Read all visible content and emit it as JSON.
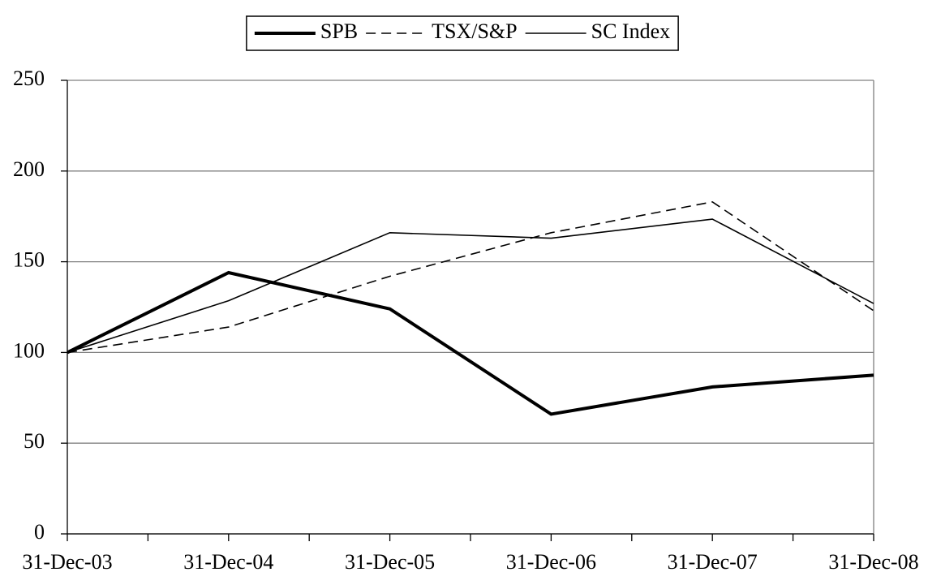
{
  "chart_data": {
    "type": "line",
    "categories": [
      "31-Dec-03",
      "31-Dec-04",
      "31-Dec-05",
      "31-Dec-06",
      "31-Dec-07",
      "31-Dec-08"
    ],
    "series": [
      {
        "name": "SPB",
        "color": "#000000",
        "width": 4,
        "dash": "none",
        "values": [
          100,
          144,
          124,
          66,
          81,
          87.5
        ]
      },
      {
        "name": "TSX/S&P",
        "color": "#000000",
        "width": 1.6,
        "dash": "12 7",
        "values": [
          100,
          114,
          142,
          166,
          183,
          123
        ]
      },
      {
        "name": "SC Index",
        "color": "#000000",
        "width": 1.6,
        "dash": "none",
        "values": [
          100,
          128.5,
          166,
          163,
          173.5,
          127
        ]
      }
    ],
    "ylim": [
      0,
      250
    ],
    "yticks": [
      0,
      50,
      100,
      150,
      200,
      250
    ],
    "grid": true,
    "legend": "top"
  }
}
